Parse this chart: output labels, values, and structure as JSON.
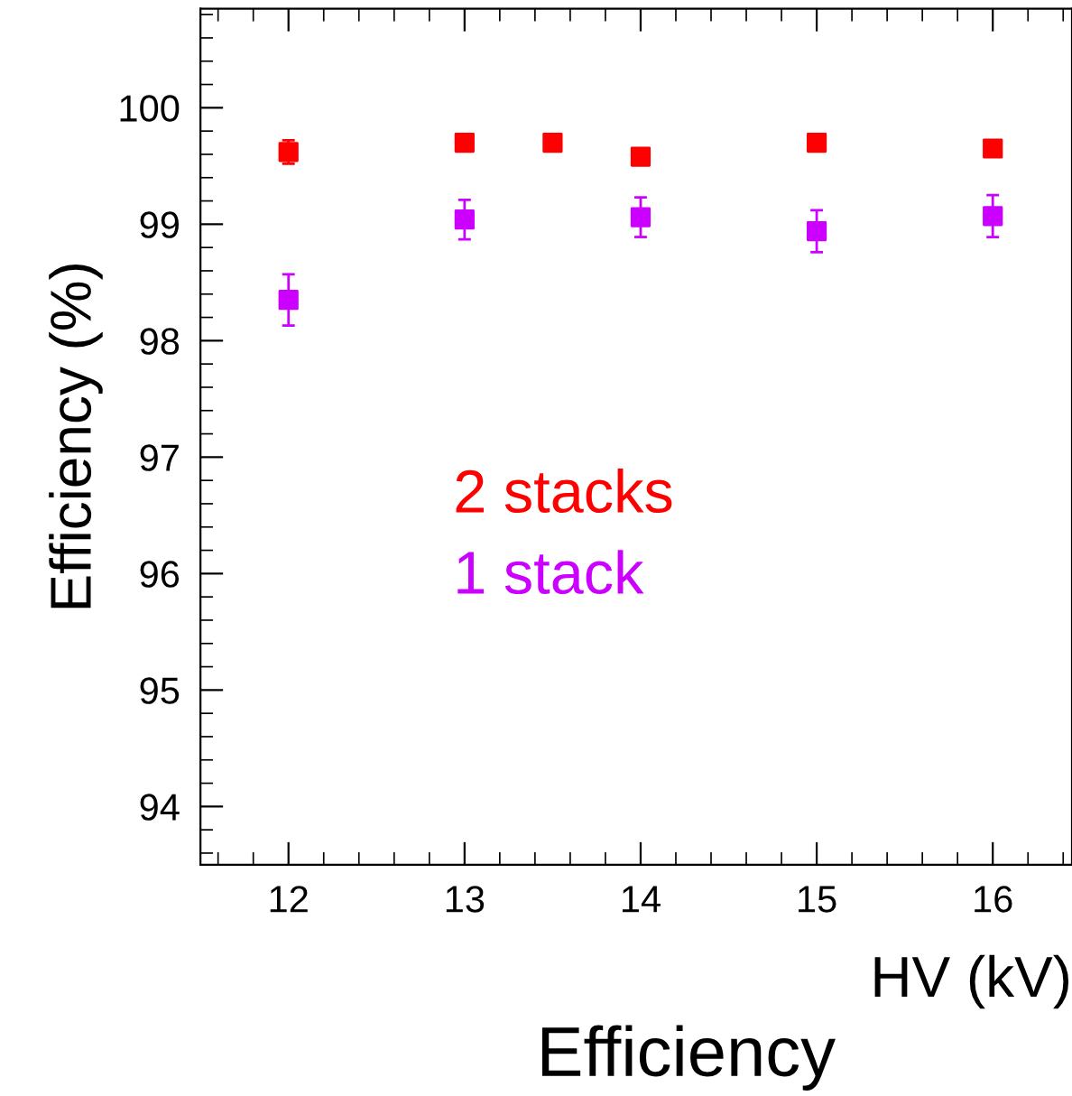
{
  "chart_data": {
    "type": "scatter",
    "xlabel": "HV (kV)",
    "ylabel": "Efficiency (%)",
    "annotations": [
      "Efficiency"
    ],
    "xlim": [
      11.5,
      16.45
    ],
    "ylim": [
      93.5,
      100.85
    ],
    "xticks": [
      12,
      13,
      14,
      15,
      16
    ],
    "yticks": [
      94,
      95,
      96,
      97,
      98,
      99,
      100
    ],
    "grid": false,
    "legend": false,
    "marker": "square",
    "series": [
      {
        "name": "2 stacks",
        "color": "#ff0000",
        "x": [
          12,
          13,
          13.5,
          14,
          15,
          16
        ],
        "values": [
          99.62,
          99.7,
          99.7,
          99.58,
          99.7,
          99.65
        ],
        "errors": [
          0.1,
          0.05,
          0.05,
          0.06,
          0.06,
          0.06
        ]
      },
      {
        "name": "1 stack",
        "color": "#cc00ff",
        "x": [
          12,
          13,
          14,
          15,
          16
        ],
        "values": [
          98.35,
          99.04,
          99.06,
          98.94,
          99.07
        ],
        "errors": [
          0.22,
          0.17,
          0.17,
          0.18,
          0.18
        ]
      }
    ]
  }
}
